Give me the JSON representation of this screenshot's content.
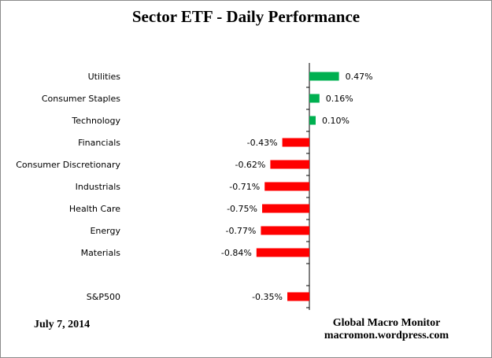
{
  "chart_data": {
    "type": "bar",
    "orientation": "horizontal",
    "title": "Sector ETF - Daily Performance",
    "categories": [
      "Utilities",
      "Consumer Staples",
      "Technology",
      "Financials",
      "Consumer Discretionary",
      "Industrials",
      "Health Care",
      "Energy",
      "Materials",
      "",
      "S&P500"
    ],
    "values": [
      0.47,
      0.16,
      0.1,
      -0.43,
      -0.62,
      -0.71,
      -0.75,
      -0.77,
      -0.84,
      null,
      -0.35
    ],
    "value_labels": [
      "0.47%",
      "0.16%",
      "0.10%",
      "-0.43%",
      "-0.62%",
      "-0.71%",
      "-0.75%",
      "-0.77%",
      "-0.84%",
      "",
      "-0.35%"
    ],
    "unit": "%",
    "colors": {
      "positive": "#00b050",
      "negative": "#ff0000"
    },
    "xlim": [
      -1.0,
      0.6
    ],
    "grid": false,
    "legend": "none"
  },
  "notes": {
    "date": "July 7, 2014",
    "credit_line1": "Global Macro Monitor",
    "credit_line2": "macromon.wordpress.com"
  },
  "colors": {
    "frame_border": "#8c8c8c",
    "axis_line": "#000000"
  }
}
